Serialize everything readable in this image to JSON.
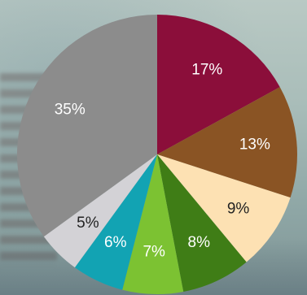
{
  "chart_data": {
    "type": "pie",
    "title": "",
    "legend": "none",
    "slices": [
      {
        "label": "17%",
        "value": 17,
        "color": "#8b0e3a",
        "text_color": "#ffffff"
      },
      {
        "label": "13%",
        "value": 13,
        "color": "#8a5424",
        "text_color": "#ffffff"
      },
      {
        "label": "9%",
        "value": 9,
        "color": "#fde1b3",
        "text_color": "#222222"
      },
      {
        "label": "8%",
        "value": 8,
        "color": "#3f7d16",
        "text_color": "#ffffff"
      },
      {
        "label": "7%",
        "value": 7,
        "color": "#7cc232",
        "text_color": "#ffffff"
      },
      {
        "label": "6%",
        "value": 6,
        "color": "#12a3b3",
        "text_color": "#ffffff"
      },
      {
        "label": "5%",
        "value": 5,
        "color": "#d3d2d6",
        "text_color": "#222222"
      },
      {
        "label": "35%",
        "value": 35,
        "color": "#8c8c8c",
        "text_color": "#ffffff"
      }
    ]
  }
}
